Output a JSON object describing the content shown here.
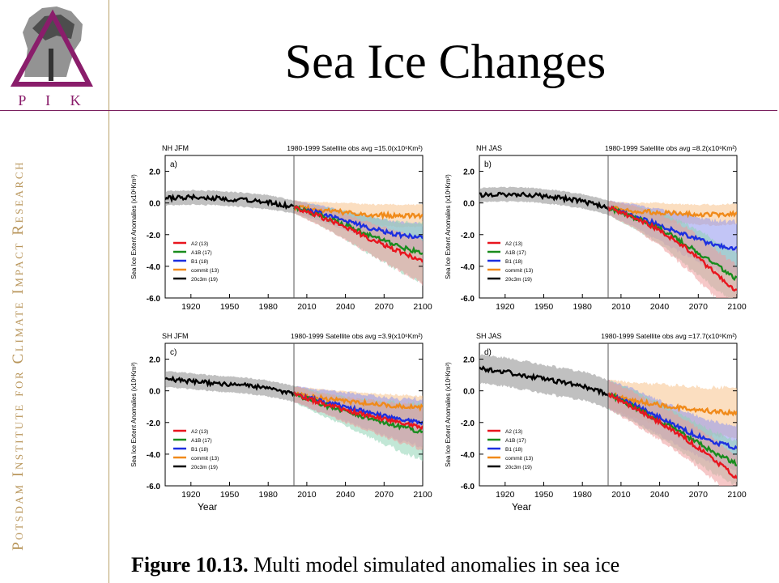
{
  "slide": {
    "title": "Sea Ice Changes",
    "logo_text": "P I K",
    "org_name": "Potsdam Institute for Climate Impact Research",
    "caption_bold": "Figure 10.13.",
    "caption_rest": " Multi model simulated anomalies in sea ice"
  },
  "colors": {
    "A2": "#e8151e",
    "A1B": "#198c1e",
    "B1": "#1c2fe0",
    "commit": "#f08a1a",
    "20c3m": "#000000",
    "logo": "#8a1d6b",
    "accent_line": "#7a1f5e"
  },
  "chart_data": [
    {
      "type": "line",
      "panel": "a)",
      "region_season": "NH JFM",
      "obs_label": "1980-1999 Satellite obs avg =15.0(x10⁶Km²)",
      "xlabel": "",
      "ylabel": "Sea Ice Extent Anomalies (x10⁶Km²)",
      "xlim": [
        1900,
        2100
      ],
      "ylim": [
        -6,
        3
      ],
      "xticks": [
        1920,
        1950,
        1980,
        2010,
        2040,
        2070,
        2100
      ],
      "yticks": [
        "2.0",
        "0.0",
        "-2.0",
        "-4.0",
        "-6.0"
      ],
      "legend": [
        "A2 (13)",
        "A1B (17)",
        "B1 (18)",
        "commit (13)",
        "20c3m (19)"
      ],
      "series": [
        {
          "name": "20c3m (19)",
          "key": "20c3m",
          "x": [
            1900,
            1920,
            1940,
            1960,
            1980,
            2000
          ],
          "y": [
            0.3,
            0.35,
            0.3,
            0.2,
            0.05,
            -0.25
          ],
          "spread": [
            0.45,
            0.45,
            0.45,
            0.45,
            0.45,
            0.4
          ]
        },
        {
          "name": "A2 (13)",
          "key": "A2",
          "x": [
            2000,
            2020,
            2040,
            2060,
            2080,
            2100
          ],
          "y": [
            -0.25,
            -0.85,
            -1.5,
            -2.3,
            -3.0,
            -3.7
          ],
          "spread": [
            0.4,
            0.6,
            0.8,
            1.0,
            1.2,
            1.4
          ]
        },
        {
          "name": "A1B (17)",
          "key": "A1B",
          "x": [
            2000,
            2020,
            2040,
            2060,
            2080,
            2100
          ],
          "y": [
            -0.25,
            -0.8,
            -1.4,
            -2.1,
            -2.7,
            -3.2
          ],
          "spread": [
            0.4,
            0.6,
            0.9,
            1.2,
            1.5,
            1.9
          ]
        },
        {
          "name": "B1 (18)",
          "key": "B1",
          "x": [
            2000,
            2020,
            2040,
            2060,
            2080,
            2100
          ],
          "y": [
            -0.25,
            -0.65,
            -1.1,
            -1.6,
            -2.0,
            -2.2
          ],
          "spread": [
            0.4,
            0.5,
            0.6,
            0.7,
            0.8,
            0.9
          ]
        },
        {
          "name": "commit (13)",
          "key": "commit",
          "x": [
            2000,
            2020,
            2040,
            2060,
            2080,
            2100
          ],
          "y": [
            -0.25,
            -0.45,
            -0.6,
            -0.75,
            -0.8,
            -0.8
          ],
          "spread": [
            0.4,
            0.5,
            0.6,
            0.65,
            0.7,
            0.7
          ]
        }
      ]
    },
    {
      "type": "line",
      "panel": "b)",
      "region_season": "NH JAS",
      "obs_label": "1980-1999 Satellite obs avg =8.2(x10⁶Km²)",
      "xlabel": "",
      "ylabel": "Sea Ice Extent Anomalies (x10⁶Km²)",
      "xlim": [
        1900,
        2100
      ],
      "ylim": [
        -6,
        3
      ],
      "xticks": [
        1920,
        1950,
        1980,
        2010,
        2040,
        2070,
        2100
      ],
      "yticks": [
        "2.0",
        "0.0",
        "-2.0",
        "-4.0",
        "-6.0"
      ],
      "legend": [
        "A2 (13)",
        "A1B (17)",
        "B1 (18)",
        "commit (13)",
        "20c3m (19)"
      ],
      "series": [
        {
          "name": "20c3m (19)",
          "key": "20c3m",
          "x": [
            1900,
            1920,
            1940,
            1960,
            1980,
            2000
          ],
          "y": [
            0.5,
            0.55,
            0.5,
            0.35,
            0.1,
            -0.3
          ],
          "spread": [
            0.45,
            0.45,
            0.45,
            0.45,
            0.45,
            0.45
          ]
        },
        {
          "name": "A2 (13)",
          "key": "A2",
          "x": [
            2000,
            2020,
            2040,
            2060,
            2080,
            2100
          ],
          "y": [
            -0.3,
            -0.9,
            -1.7,
            -2.8,
            -4.2,
            -5.6
          ],
          "spread": [
            0.45,
            0.7,
            1.0,
            1.3,
            1.5,
            1.6
          ]
        },
        {
          "name": "A1B (17)",
          "key": "A1B",
          "x": [
            2000,
            2020,
            2040,
            2060,
            2080,
            2100
          ],
          "y": [
            -0.3,
            -0.9,
            -1.6,
            -2.6,
            -3.7,
            -4.8
          ],
          "spread": [
            0.45,
            0.7,
            1.0,
            1.3,
            1.5,
            1.6
          ]
        },
        {
          "name": "B1 (18)",
          "key": "B1",
          "x": [
            2000,
            2020,
            2040,
            2060,
            2080,
            2100
          ],
          "y": [
            -0.3,
            -0.8,
            -1.4,
            -2.0,
            -2.6,
            -2.9
          ],
          "spread": [
            0.45,
            0.7,
            1.0,
            1.3,
            1.5,
            1.7
          ]
        },
        {
          "name": "commit (13)",
          "key": "commit",
          "x": [
            2000,
            2020,
            2040,
            2060,
            2080,
            2100
          ],
          "y": [
            -0.3,
            -0.5,
            -0.6,
            -0.7,
            -0.75,
            -0.7
          ],
          "spread": [
            0.4,
            0.5,
            0.6,
            0.6,
            0.65,
            0.65
          ]
        }
      ]
    },
    {
      "type": "line",
      "panel": "c)",
      "region_season": "SH JFM",
      "obs_label": "1980-1999 Satellite obs avg =3.9(x10⁶Km²)",
      "xlabel": "Year",
      "ylabel": "Sea Ice Extent Anomalies (x10⁶Km²)",
      "xlim": [
        1900,
        2100
      ],
      "ylim": [
        -6,
        3
      ],
      "xticks": [
        1920,
        1950,
        1980,
        2010,
        2040,
        2070,
        2100
      ],
      "yticks": [
        "2.0",
        "0.0",
        "-2.0",
        "-4.0",
        "-6.0"
      ],
      "legend": [
        "A2 (13)",
        "A1B (17)",
        "B1 (18)",
        "commit (13)",
        "20c3m (19)"
      ],
      "series": [
        {
          "name": "20c3m (19)",
          "key": "20c3m",
          "x": [
            1900,
            1920,
            1940,
            1960,
            1980,
            2000
          ],
          "y": [
            0.75,
            0.6,
            0.45,
            0.35,
            0.15,
            -0.2
          ],
          "spread": [
            0.5,
            0.5,
            0.5,
            0.5,
            0.5,
            0.5
          ]
        },
        {
          "name": "A2 (13)",
          "key": "A2",
          "x": [
            2000,
            2020,
            2040,
            2060,
            2080,
            2100
          ],
          "y": [
            -0.2,
            -0.75,
            -1.2,
            -1.6,
            -2.0,
            -2.3
          ],
          "spread": [
            0.5,
            0.6,
            0.8,
            1.0,
            1.2,
            1.4
          ]
        },
        {
          "name": "A1B (17)",
          "key": "A1B",
          "x": [
            2000,
            2020,
            2040,
            2060,
            2080,
            2100
          ],
          "y": [
            -0.2,
            -0.8,
            -1.3,
            -1.8,
            -2.2,
            -2.6
          ],
          "spread": [
            0.5,
            0.7,
            0.9,
            1.2,
            1.5,
            1.8
          ]
        },
        {
          "name": "B1 (18)",
          "key": "B1",
          "x": [
            2000,
            2020,
            2040,
            2060,
            2080,
            2100
          ],
          "y": [
            -0.2,
            -0.65,
            -1.0,
            -1.4,
            -1.8,
            -2.0
          ],
          "spread": [
            0.5,
            0.7,
            0.9,
            1.1,
            1.3,
            1.5
          ]
        },
        {
          "name": "commit (13)",
          "key": "commit",
          "x": [
            2000,
            2020,
            2040,
            2060,
            2080,
            2100
          ],
          "y": [
            -0.2,
            -0.45,
            -0.65,
            -0.8,
            -0.95,
            -1.05
          ],
          "spread": [
            0.5,
            0.55,
            0.6,
            0.65,
            0.7,
            0.7
          ]
        }
      ]
    },
    {
      "type": "line",
      "panel": "d)",
      "region_season": "SH JAS",
      "obs_label": "1980-1999 Satellite obs avg =17.7(x10⁶Km²)",
      "xlabel": "Year",
      "ylabel": "Sea Ice Extent Anomalies (x10⁶Km²)",
      "xlim": [
        1900,
        2100
      ],
      "ylim": [
        -6,
        3
      ],
      "xticks": [
        1920,
        1950,
        1980,
        2010,
        2040,
        2070,
        2100
      ],
      "yticks": [
        "2.0",
        "0.0",
        "-2.0",
        "-4.0",
        "-6.0"
      ],
      "legend": [
        "A2 (13)",
        "A1B (17)",
        "B1 (18)",
        "commit (13)",
        "20c3m (19)"
      ],
      "series": [
        {
          "name": "20c3m (19)",
          "key": "20c3m",
          "x": [
            1900,
            1920,
            1940,
            1960,
            1980,
            2000
          ],
          "y": [
            1.4,
            1.2,
            0.9,
            0.6,
            0.3,
            -0.2
          ],
          "spread": [
            0.9,
            0.9,
            0.9,
            0.9,
            0.9,
            0.9
          ]
        },
        {
          "name": "A2 (13)",
          "key": "A2",
          "x": [
            2000,
            2020,
            2040,
            2060,
            2080,
            2100
          ],
          "y": [
            -0.2,
            -1.1,
            -2.0,
            -3.0,
            -4.2,
            -5.5
          ],
          "spread": [
            0.9,
            1.0,
            1.1,
            1.2,
            1.3,
            1.4
          ]
        },
        {
          "name": "A1B (17)",
          "key": "A1B",
          "x": [
            2000,
            2020,
            2040,
            2060,
            2080,
            2100
          ],
          "y": [
            -0.2,
            -1.0,
            -1.9,
            -2.8,
            -3.8,
            -4.6
          ],
          "spread": [
            0.9,
            1.0,
            1.1,
            1.2,
            1.3,
            1.4
          ]
        },
        {
          "name": "B1 (18)",
          "key": "B1",
          "x": [
            2000,
            2020,
            2040,
            2060,
            2080,
            2100
          ],
          "y": [
            -0.2,
            -0.9,
            -1.7,
            -2.5,
            -3.2,
            -3.6
          ],
          "spread": [
            0.9,
            1.0,
            1.1,
            1.2,
            1.3,
            1.4
          ]
        },
        {
          "name": "commit (13)",
          "key": "commit",
          "x": [
            2000,
            2020,
            2040,
            2060,
            2080,
            2100
          ],
          "y": [
            -0.2,
            -0.6,
            -0.9,
            -1.1,
            -1.3,
            -1.4
          ],
          "spread": [
            0.9,
            1.1,
            1.3,
            1.4,
            1.5,
            1.6
          ]
        }
      ]
    }
  ]
}
